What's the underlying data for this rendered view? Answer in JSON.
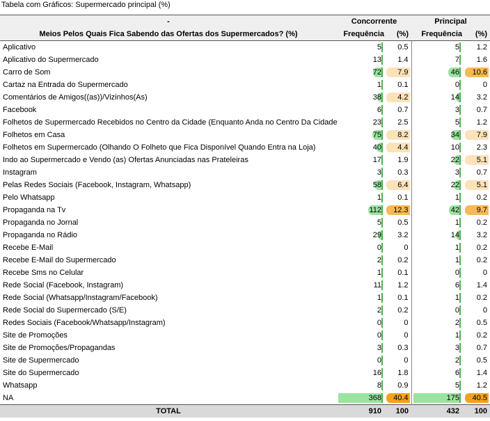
{
  "title": "Tabela com Gráficos: Supermercado principal (%)",
  "header": {
    "dash": "-",
    "question": "Meios Pelos Quais Fica Sabendo das Ofertas dos Supermercados? (%)",
    "group1": "Concorrente",
    "group2": "Principal",
    "freq": "Frequência",
    "pct": "(%)"
  },
  "rows": [
    {
      "label": "Aplicativo",
      "c_f": "5",
      "c_p": "0.5",
      "p_f": "5",
      "p_p": "1.2"
    },
    {
      "label": "Aplicativo do Supermercado",
      "c_f": "13",
      "c_p": "1.4",
      "p_f": "7",
      "p_p": "1.6"
    },
    {
      "label": "Carro de Som",
      "c_f": "72",
      "c_p": "7.9",
      "p_f": "46",
      "p_p": "10.6"
    },
    {
      "label": "Cartaz na Entrada do Supermercado",
      "c_f": "1",
      "c_p": "0.1",
      "p_f": "0",
      "p_p": "0"
    },
    {
      "label": "Comentários de Amigos((as))/Vizinhos(As)",
      "c_f": "38",
      "c_p": "4.2",
      "p_f": "14",
      "p_p": "3.2"
    },
    {
      "label": "Facebook",
      "c_f": "6",
      "c_p": "0.7",
      "p_f": "3",
      "p_p": "0.7"
    },
    {
      "label": "Folhetos de Supermercado Recebidos no Centro da Cidade (Enquanto Anda no Centro Da Cidade)",
      "c_f": "23",
      "c_p": "2.5",
      "p_f": "5",
      "p_p": "1.2"
    },
    {
      "label": "Folhetos em Casa",
      "c_f": "75",
      "c_p": "8.2",
      "p_f": "34",
      "p_p": "7.9"
    },
    {
      "label": "Folhetos em Supermercado (Olhando O Folheto que Fica Disponível Quando Entra na Loja)",
      "c_f": "40",
      "c_p": "4.4",
      "p_f": "10",
      "p_p": "2.3"
    },
    {
      "label": "Indo ao Supermercado e Vendo (as) Ofertas Anunciadas nas Prateleiras",
      "c_f": "17",
      "c_p": "1.9",
      "p_f": "22",
      "p_p": "5.1"
    },
    {
      "label": "Instagram",
      "c_f": "3",
      "c_p": "0.3",
      "p_f": "3",
      "p_p": "0.7"
    },
    {
      "label": "Pelas Redes Sociais (Facebook, Instagram, Whatsapp)",
      "c_f": "58",
      "c_p": "6.4",
      "p_f": "22",
      "p_p": "5.1"
    },
    {
      "label": "Pelo Whatsapp",
      "c_f": "1",
      "c_p": "0.1",
      "p_f": "1",
      "p_p": "0.2"
    },
    {
      "label": "Propaganda na Tv",
      "c_f": "112",
      "c_p": "12.3",
      "p_f": "42",
      "p_p": "9.7"
    },
    {
      "label": "Propaganda no Jornal",
      "c_f": "5",
      "c_p": "0.5",
      "p_f": "1",
      "p_p": "0.2"
    },
    {
      "label": "Propaganda no Rádio",
      "c_f": "29",
      "c_p": "3.2",
      "p_f": "14",
      "p_p": "3.2"
    },
    {
      "label": "Recebe E-Mail",
      "c_f": "0",
      "c_p": "0",
      "p_f": "1",
      "p_p": "0.2"
    },
    {
      "label": "Recebe E-Mail do Supermercado",
      "c_f": "2",
      "c_p": "0.2",
      "p_f": "1",
      "p_p": "0.2"
    },
    {
      "label": "Recebe Sms no Celular",
      "c_f": "1",
      "c_p": "0.1",
      "p_f": "0",
      "p_p": "0"
    },
    {
      "label": "Rede Social (Facebook, Instagram)",
      "c_f": "11",
      "c_p": "1.2",
      "p_f": "6",
      "p_p": "1.4"
    },
    {
      "label": "Rede Social (Whatsapp/Instagram/Facebook)",
      "c_f": "1",
      "c_p": "0.1",
      "p_f": "1",
      "p_p": "0.2"
    },
    {
      "label": "Rede Social do Supermercado (S/E)",
      "c_f": "2",
      "c_p": "0.2",
      "p_f": "0",
      "p_p": "0"
    },
    {
      "label": "Redes Sociais (Facebook/Whatsapp/Instagram)",
      "c_f": "0",
      "c_p": "0",
      "p_f": "2",
      "p_p": "0.5"
    },
    {
      "label": "Site de Promoções",
      "c_f": "0",
      "c_p": "0",
      "p_f": "1",
      "p_p": "0.2"
    },
    {
      "label": "Site de Promoções/Propagandas",
      "c_f": "3",
      "c_p": "0.3",
      "p_f": "3",
      "p_p": "0.7"
    },
    {
      "label": "Site de Supermercado",
      "c_f": "0",
      "c_p": "0",
      "p_f": "2",
      "p_p": "0.5"
    },
    {
      "label": "Site do Supermercado",
      "c_f": "16",
      "c_p": "1.8",
      "p_f": "6",
      "p_p": "1.4"
    },
    {
      "label": "Whatsapp",
      "c_f": "8",
      "c_p": "0.9",
      "p_f": "5",
      "p_p": "1.2"
    },
    {
      "label": "NA",
      "c_f": "368",
      "c_p": "40.4",
      "p_f": "175",
      "p_p": "40.5"
    }
  ],
  "total": {
    "label": "TOTAL",
    "c_f": "910",
    "c_p": "100",
    "p_f": "432",
    "p_p": "100"
  },
  "colors": {
    "freq_bar": "#9be3a0",
    "pct_low": "#fdf0dc",
    "pct_mid": "#fbe2b9",
    "pct_high": "#f7b955",
    "pct_max": "#f4a21c"
  }
}
